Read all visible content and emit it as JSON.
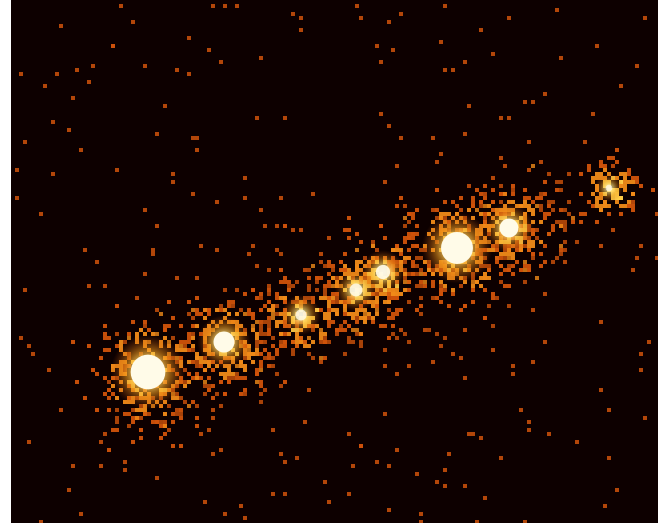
{
  "image": {
    "subject": "x-ray-image-of-bright-sources-along-diagonal",
    "palette": {
      "background": "#0d0000",
      "dim_pixel": "#d0520a",
      "mid_pixel": "#f08a18",
      "bright_pixel": "#ffd04a",
      "core": "#fffbe8"
    },
    "sources": [
      {
        "name": "source-1",
        "brightness": 1.0
      },
      {
        "name": "source-2",
        "brightness": 0.75
      },
      {
        "name": "source-3",
        "brightness": 0.45
      },
      {
        "name": "source-4",
        "brightness": 0.5
      },
      {
        "name": "source-5",
        "brightness": 0.55
      },
      {
        "name": "source-6",
        "brightness": 0.95
      },
      {
        "name": "source-7",
        "brightness": 0.7
      },
      {
        "name": "source-8",
        "brightness": 0.35
      }
    ]
  }
}
